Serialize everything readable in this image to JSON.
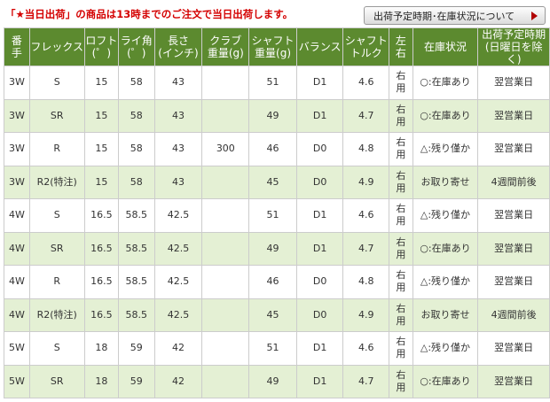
{
  "notice": "「★当日出荷」の商品は13時までのご注文で当日出荷します。",
  "button_label": "出荷予定時期･在庫状況について",
  "colors": {
    "header_bg": "#5c8a2f",
    "stripe": "#e4f0d4",
    "notice": "#d40000"
  },
  "headers": [
    [
      "番",
      "手"
    ],
    [
      "フレックス"
    ],
    [
      "ロフト",
      "(゜)"
    ],
    [
      "ライ角",
      "(゜)"
    ],
    [
      "長さ",
      "(インチ)"
    ],
    [
      "クラブ",
      "重量(g)"
    ],
    [
      "シャフト",
      "重量(g)"
    ],
    [
      "バランス"
    ],
    [
      "シャフト",
      "トルク"
    ],
    [
      "左",
      "右"
    ],
    [
      "在庫状況"
    ],
    [
      "出荷予定時期",
      "(日曜日を除く)"
    ]
  ],
  "rows": [
    {
      "club": "3W",
      "flex": "S",
      "loft": "15",
      "lie": "58",
      "length": "43",
      "club_weight": "",
      "shaft_weight": "51",
      "balance": "D1",
      "torque": "4.6",
      "hand": [
        "右",
        "用"
      ],
      "stock": "○:在庫あり",
      "ship": "翌営業日"
    },
    {
      "club": "3W",
      "flex": "SR",
      "loft": "15",
      "lie": "58",
      "length": "43",
      "club_weight": "",
      "shaft_weight": "49",
      "balance": "D1",
      "torque": "4.7",
      "hand": [
        "右",
        "用"
      ],
      "stock": "○:在庫あり",
      "ship": "翌営業日"
    },
    {
      "club": "3W",
      "flex": "R",
      "loft": "15",
      "lie": "58",
      "length": "43",
      "club_weight": "300",
      "shaft_weight": "46",
      "balance": "D0",
      "torque": "4.8",
      "hand": [
        "右",
        "用"
      ],
      "stock": "△:残り僅か",
      "ship": "翌営業日"
    },
    {
      "club": "3W",
      "flex": "R2(特注)",
      "loft": "15",
      "lie": "58",
      "length": "43",
      "club_weight": "",
      "shaft_weight": "45",
      "balance": "D0",
      "torque": "4.9",
      "hand": [
        "右",
        "用"
      ],
      "stock": "お取り寄せ",
      "ship": "4週間前後"
    },
    {
      "club": "4W",
      "flex": "S",
      "loft": "16.5",
      "lie": "58.5",
      "length": "42.5",
      "club_weight": "",
      "shaft_weight": "51",
      "balance": "D1",
      "torque": "4.6",
      "hand": [
        "右",
        "用"
      ],
      "stock": "△:残り僅か",
      "ship": "翌営業日"
    },
    {
      "club": "4W",
      "flex": "SR",
      "loft": "16.5",
      "lie": "58.5",
      "length": "42.5",
      "club_weight": "",
      "shaft_weight": "49",
      "balance": "D1",
      "torque": "4.7",
      "hand": [
        "右",
        "用"
      ],
      "stock": "○:在庫あり",
      "ship": "翌営業日"
    },
    {
      "club": "4W",
      "flex": "R",
      "loft": "16.5",
      "lie": "58.5",
      "length": "42.5",
      "club_weight": "",
      "shaft_weight": "46",
      "balance": "D0",
      "torque": "4.8",
      "hand": [
        "右",
        "用"
      ],
      "stock": "△:残り僅か",
      "ship": "翌営業日"
    },
    {
      "club": "4W",
      "flex": "R2(特注)",
      "loft": "16.5",
      "lie": "58.5",
      "length": "42.5",
      "club_weight": "",
      "shaft_weight": "45",
      "balance": "D0",
      "torque": "4.9",
      "hand": [
        "右",
        "用"
      ],
      "stock": "お取り寄せ",
      "ship": "4週間前後"
    },
    {
      "club": "5W",
      "flex": "S",
      "loft": "18",
      "lie": "59",
      "length": "42",
      "club_weight": "",
      "shaft_weight": "51",
      "balance": "D1",
      "torque": "4.6",
      "hand": [
        "右",
        "用"
      ],
      "stock": "△:残り僅か",
      "ship": "翌営業日"
    },
    {
      "club": "5W",
      "flex": "SR",
      "loft": "18",
      "lie": "59",
      "length": "42",
      "club_weight": "",
      "shaft_weight": "49",
      "balance": "D1",
      "torque": "4.7",
      "hand": [
        "右",
        "用"
      ],
      "stock": "○:在庫あり",
      "ship": "翌営業日"
    }
  ]
}
